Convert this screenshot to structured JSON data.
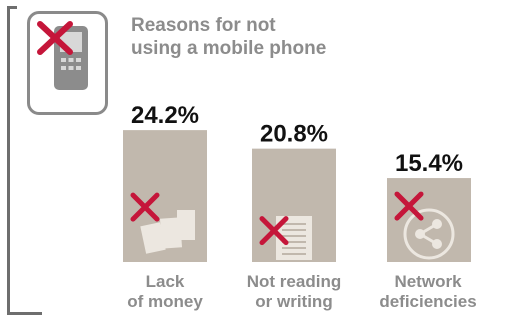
{
  "chart_data": {
    "type": "bar",
    "title_lines": [
      "Reasons for not",
      "using a mobile phone"
    ],
    "categories": [
      [
        "Lack",
        "of money"
      ],
      [
        "Not reading",
        "or writing"
      ],
      [
        "Network",
        "deficiencies"
      ]
    ],
    "values": [
      24.2,
      20.8,
      15.4
    ],
    "value_labels": [
      "24.2%",
      "20.8%",
      "15.4%"
    ],
    "unit": "%",
    "colors": {
      "bar": "#c1b8ad",
      "cross": "#c5163a",
      "title": "#8c8c8c",
      "value": "#111111"
    },
    "icons": [
      "money-bills-icon",
      "document-icon",
      "share-network-icon"
    ]
  }
}
